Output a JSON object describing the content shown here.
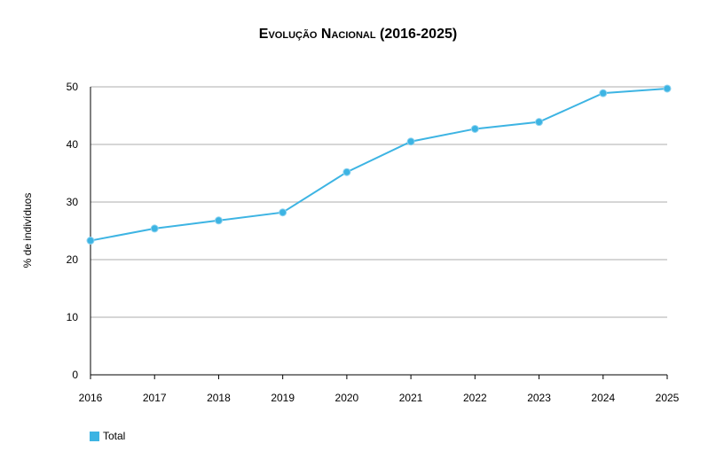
{
  "chart_data": {
    "type": "line",
    "title": "Evolução Nacional (2016-2025)",
    "xlabel": "",
    "ylabel": "% de indivíduos",
    "categories": [
      "2016",
      "2017",
      "2018",
      "2019",
      "2020",
      "2021",
      "2022",
      "2023",
      "2024",
      "2025"
    ],
    "yticks": [
      0,
      10,
      20,
      30,
      40,
      50
    ],
    "ylim": [
      0,
      50
    ],
    "grid": true,
    "legend_position": "bottom-left",
    "series": [
      {
        "name": "Total",
        "color": "#3db4e3",
        "values": [
          23.3,
          25.4,
          26.8,
          28.2,
          35.2,
          40.5,
          42.7,
          43.9,
          48.9,
          49.7
        ]
      }
    ]
  },
  "colors": {
    "grid": "#c8c8c8",
    "axis": "#000000",
    "series": "#3db4e3"
  }
}
